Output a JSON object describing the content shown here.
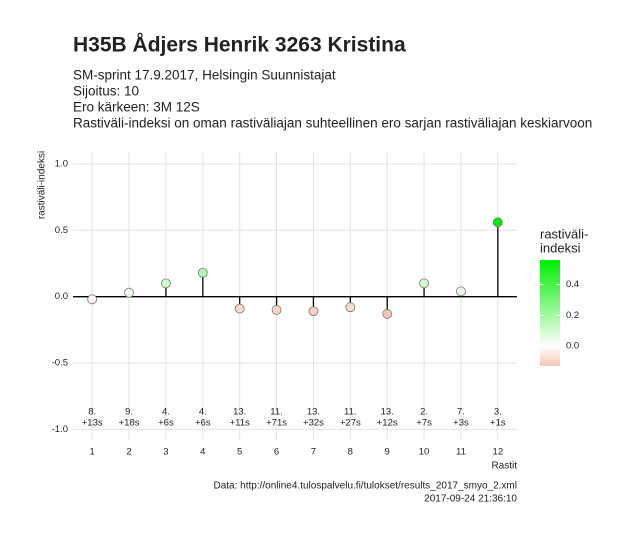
{
  "chart_data": {
    "type": "lollipop",
    "title": "H35B Ådjers Henrik 3263 Kristina",
    "subtitle": [
      "SM-sprint 17.9.2017, Helsingin Suunnistajat",
      "Sijoitus: 10",
      "Ero kärkeen: 3M 12S",
      "Rastiväli-indeksi on oman rastiväliajan suhteellinen ero sarjan rastiväliajan keskiarvoon"
    ],
    "y_label": "rastiväli-indeksi",
    "x_label": "Rastit",
    "x": [
      1,
      2,
      3,
      4,
      5,
      6,
      7,
      8,
      9,
      10,
      11,
      12
    ],
    "values": [
      -0.02,
      0.03,
      0.1,
      0.18,
      -0.09,
      -0.1,
      -0.11,
      -0.08,
      -0.13,
      0.1,
      0.04,
      0.56
    ],
    "rank_labels": [
      "8.",
      "9.",
      "4.",
      "4.",
      "13.",
      "11.",
      "13.",
      "11.",
      "13.",
      "2.",
      "7.",
      "3."
    ],
    "time_labels": [
      "+13s",
      "+18s",
      "+6s",
      "+6s",
      "+11s",
      "+71s",
      "+32s",
      "+27s",
      "+12s",
      "+7s",
      "+3s",
      "+1s"
    ],
    "xlim": [
      0.48,
      12.52
    ],
    "xticks": [
      1,
      2,
      3,
      4,
      5,
      6,
      7,
      8,
      9,
      10,
      11,
      12
    ],
    "ylim": [
      -1.08,
      1.09
    ],
    "yticks": [
      {
        "value": -1,
        "label": "-1.0"
      },
      {
        "value": -0.5,
        "label": "-0.5"
      },
      {
        "value": 0,
        "label": "0.0"
      },
      {
        "value": 0.5,
        "label": "0.5"
      },
      {
        "value": 1,
        "label": "1.0"
      }
    ],
    "grid": true,
    "legend_title": [
      "rastiväli-",
      "indeksi"
    ],
    "colorbar_lim": [
      -0.13,
      0.56
    ],
    "colorbar_ticks": [
      {
        "value": 0,
        "label": "0.0"
      },
      {
        "value": 0.2,
        "label": "0.2"
      },
      {
        "value": 0.4,
        "label": "0.4"
      }
    ],
    "colors": {
      "low": "#f7c6b8",
      "mid": "#ffffff",
      "high": "#00ee00"
    },
    "caption": [
      "Data: http://online4.tulospalvelu.fi/tulokset/results_2017_smyo_2.xml",
      "2017-09-24 21:36:10"
    ]
  }
}
